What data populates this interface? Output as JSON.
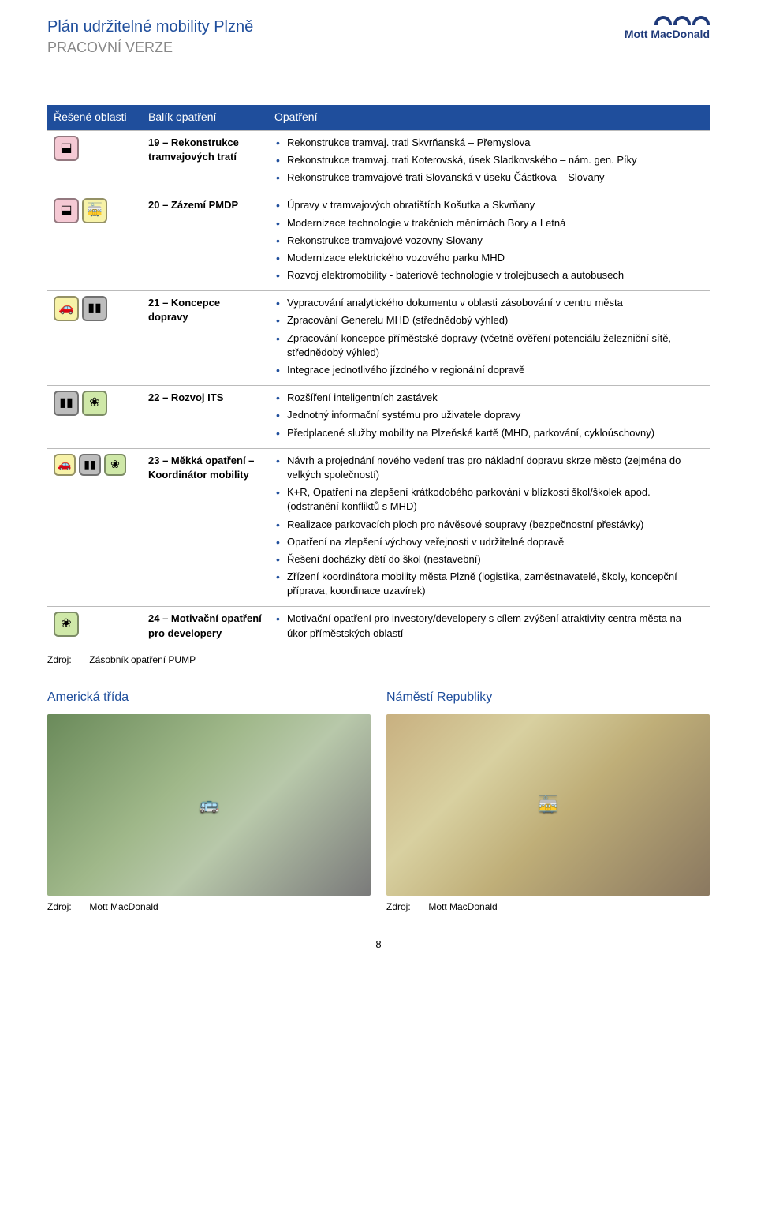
{
  "header": {
    "title": "Plán udržitelné mobility Plzně",
    "subtitle": "PRACOVNÍ VERZE",
    "logo_text": "Mott MacDonald",
    "logo_color": "#1f3a7a"
  },
  "table": {
    "col1": "Řešené oblasti",
    "col2": "Balík opatření",
    "col3": "Opatření",
    "header_bg": "#1f4e9c",
    "header_fg": "#ffffff",
    "rows": [
      {
        "icons": [
          {
            "glyph": "⬓",
            "bg": "#f5c9d4"
          }
        ],
        "balik": "19 – Rekonstrukce tramvajových tratí",
        "items": [
          "Rekonstrukce tramvaj. trati Skvrňanská – Přemyslova",
          "Rekonstrukce tramvaj. trati Koterovská, úsek Sladkovského – nám. gen. Píky",
          "Rekonstrukce tramvajové trati Slovanská v úseku Částkova – Slovany"
        ]
      },
      {
        "icons": [
          {
            "glyph": "⬓",
            "bg": "#f5c9d4"
          },
          {
            "glyph": "🚋",
            "bg": "#f7f2a8"
          }
        ],
        "balik": "20 – Zázemí PMDP",
        "items": [
          "Úpravy v tramvajových obratištích Košutka a Skvrňany",
          "Modernizace technologie v trakčních měnírnách Bory a Letná",
          "Rekonstrukce tramvajové vozovny Slovany",
          "Modernizace elektrického vozového parku MHD",
          "Rozvoj elektromobility - bateriové technologie v trolejbusech a autobusech"
        ]
      },
      {
        "icons": [
          {
            "glyph": "🚗",
            "bg": "#f7f2a8"
          },
          {
            "glyph": "▮▮",
            "bg": "#bdbdbd"
          }
        ],
        "balik": "21 – Koncepce dopravy",
        "items": [
          "Vypracování analytického dokumentu v oblasti zásobování v centru města",
          "Zpracování Generelu MHD (střednědobý výhled)",
          "Zpracování koncepce příměstské dopravy (včetně ověření potenciálu železniční sítě, střednědobý výhled)",
          "Integrace jednotlivého jízdného v regionální dopravě"
        ]
      },
      {
        "icons": [
          {
            "glyph": "▮▮",
            "bg": "#bdbdbd"
          },
          {
            "glyph": "❀",
            "bg": "#cfe8a8"
          }
        ],
        "balik": "22 – Rozvoj ITS",
        "items": [
          "Rozšíření inteligentních zastávek",
          "Jednotný informační systému pro uživatele dopravy",
          "Předplacené služby mobility na Plzeňské kartě (MHD, parkování, cykloúschovny)"
        ]
      },
      {
        "icons": [
          {
            "glyph": "🚗",
            "bg": "#f7f2a8"
          },
          {
            "glyph": "▮▮",
            "bg": "#bdbdbd"
          },
          {
            "glyph": "❀",
            "bg": "#cfe8a8"
          }
        ],
        "balik": "23 – Měkká opatření – Koordinátor mobility",
        "items": [
          "Návrh a projednání nového vedení tras pro nákladní dopravu skrze město (zejména do velkých společností)",
          "K+R, Opatření na zlepšení krátkodobého parkování v blízkosti škol/školek apod. (odstranění konfliktů s MHD)",
          "Realizace parkovacích ploch pro návěsové soupravy (bezpečnostní přestávky)",
          "Opatření na zlepšení výchovy veřejnosti v udržitelné dopravě",
          "Řešení docházky dětí do škol (nestavební)",
          "Zřízení koordinátora mobility města Plzně (logistika, zaměstnavatelé, školy, koncepční příprava, koordinace uzavírek)"
        ]
      },
      {
        "icons": [
          {
            "glyph": "❀",
            "bg": "#cfe8a8"
          }
        ],
        "balik": "24 – Motivační opatření pro developery",
        "items": [
          "Motivační opatření pro investory/developery s cílem zvýšení atraktivity centra města na úkor příměstských oblastí"
        ]
      }
    ],
    "source_label": "Zdroj:",
    "source_text": "Zásobník opatření PUMP"
  },
  "photos": {
    "left_title": "Americká třída",
    "right_title": "Náměstí Republiky",
    "left_source": "Mott MacDonald",
    "right_source": "Mott MacDonald",
    "source_label": "Zdroj:"
  },
  "page_num": "8",
  "colors": {
    "blue": "#1f4e9c",
    "grey": "#888888"
  }
}
